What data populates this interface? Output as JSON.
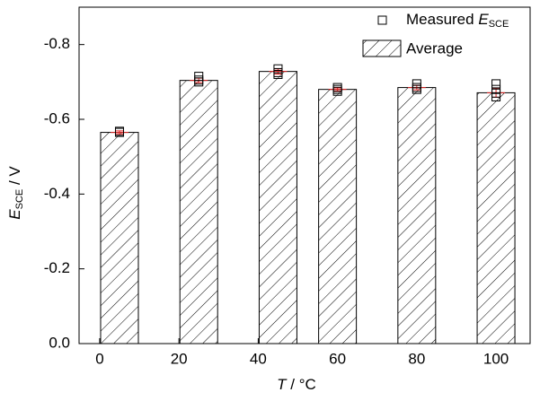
{
  "chart_data": {
    "type": "bar",
    "xlabel": {
      "symbol": "T",
      "unit": " / °C"
    },
    "ylabel": {
      "symbol": "E",
      "sub": "SCE",
      "unit": " / V"
    },
    "xlim": [
      -5.2,
      108.6
    ],
    "xticks": [
      0,
      20,
      40,
      60,
      80,
      100
    ],
    "ylim": [
      0,
      -0.9
    ],
    "yticks": [
      {
        "value": 0,
        "label": "0.0"
      },
      -0.2,
      -0.4,
      -0.6,
      -0.8
    ],
    "legend": "upper right",
    "series": [
      {
        "name": "Average",
        "kind": "bar",
        "color": "#000000",
        "x": [
          5,
          25,
          45,
          60,
          80,
          100
        ],
        "values": [
          -0.565,
          -0.704,
          -0.728,
          -0.68,
          -0.685,
          -0.671
        ],
        "errors": [
          0.004,
          0.006,
          0.007,
          0.004,
          0.006,
          0.012
        ],
        "error_color": "#e02020"
      },
      {
        "name": "Measured",
        "symbol": "E",
        "sub": "SCE",
        "kind": "scatter",
        "color": "#000000",
        "x": [
          5,
          5,
          25,
          25,
          25,
          45,
          45,
          45,
          60,
          60,
          60,
          80,
          80,
          80,
          100,
          100,
          100,
          100
        ],
        "values": [
          -0.565,
          -0.568,
          -0.715,
          -0.705,
          -0.7,
          -0.735,
          -0.725,
          -0.72,
          -0.685,
          -0.68,
          -0.675,
          -0.695,
          -0.685,
          -0.68,
          -0.695,
          -0.68,
          -0.67,
          -0.66
        ]
      }
    ]
  }
}
